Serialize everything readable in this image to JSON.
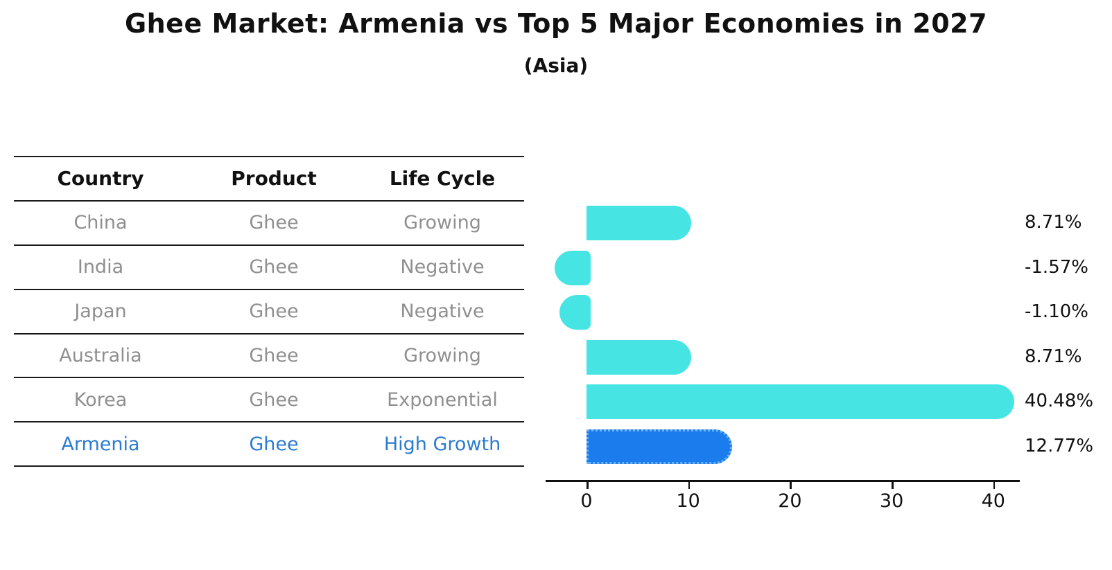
{
  "title": "Ghee Market: Armenia vs Top 5 Major Economies in 2027",
  "subtitle": "(Asia)",
  "table": {
    "headers": [
      "Country",
      "Product",
      "Life Cycle"
    ],
    "rows": [
      {
        "country": "China",
        "product": "Ghee",
        "life_cycle": "Growing",
        "highlight": false
      },
      {
        "country": "India",
        "product": "Ghee",
        "life_cycle": "Negative",
        "highlight": false
      },
      {
        "country": "Japan",
        "product": "Ghee",
        "life_cycle": "Negative",
        "highlight": false
      },
      {
        "country": "Australia",
        "product": "Ghee",
        "life_cycle": "Growing",
        "highlight": false
      },
      {
        "country": "Korea",
        "product": "Ghee",
        "life_cycle": "Exponential",
        "highlight": false
      },
      {
        "country": "Armenia",
        "product": "Ghee",
        "life_cycle": "High Growth",
        "highlight": true
      }
    ]
  },
  "chart_data": {
    "type": "bar",
    "orientation": "horizontal",
    "title": "Ghee Market: Armenia vs Top 5 Major Economies in 2027",
    "subtitle": "(Asia)",
    "categories": [
      "China",
      "India",
      "Japan",
      "Australia",
      "Korea",
      "Armenia"
    ],
    "values": [
      8.71,
      -1.57,
      -1.1,
      8.71,
      40.48,
      12.77
    ],
    "value_labels": [
      "8.71%",
      "-1.57%",
      "-1.10%",
      "8.71%",
      "40.48%",
      "12.77%"
    ],
    "xticks": [
      0,
      10,
      20,
      30,
      40
    ],
    "xlim": [
      -4,
      43
    ],
    "grid": false,
    "legend": false,
    "bar_color": "#46e5e3",
    "highlight_index": 5,
    "highlight_bar_color": "#1b7ded",
    "highlight_border_color": "#6fb2f5",
    "highlight_text_color": "#2b7bd0",
    "text_color": "#111111",
    "muted_text_color": "#8f8f8f"
  }
}
